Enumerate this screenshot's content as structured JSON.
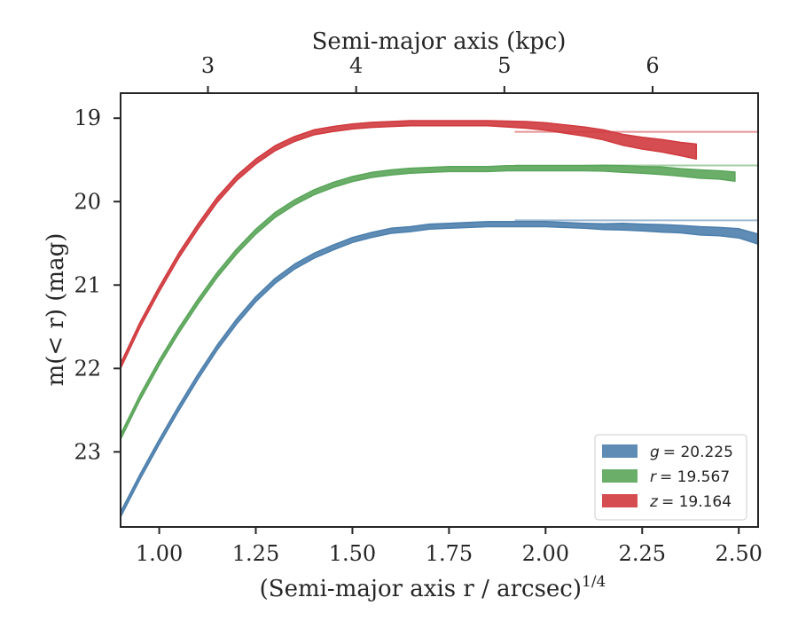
{
  "chart_data": {
    "type": "area",
    "xlabel": "(Semi-major axis r / arcsec)",
    "xlabel_exponent": "1/4",
    "ylabel": "m(< r) (mag)",
    "top_xlabel": "Semi-major axis (kpc)",
    "xlim": [
      0.9,
      2.55
    ],
    "ylim": [
      23.9,
      18.7
    ],
    "y_inverted": true,
    "x_ticks": [
      1.0,
      1.25,
      1.5,
      1.75,
      2.0,
      2.25,
      2.5
    ],
    "x_tick_labels": [
      "1.00",
      "1.25",
      "1.50",
      "1.75",
      "2.00",
      "2.25",
      "2.50"
    ],
    "y_ticks": [
      19,
      20,
      21,
      22,
      23
    ],
    "y_tick_labels": [
      "19",
      "20",
      "21",
      "22",
      "23"
    ],
    "top_ticks": [
      3,
      4,
      5,
      6
    ],
    "top_tick_labels": [
      "3",
      "4",
      "5",
      "6"
    ],
    "grid": false,
    "legend_position": "bottom-right",
    "series": [
      {
        "name": "g = 20.225",
        "legend_var": "g",
        "legend_value": "= 20.225",
        "color": "#4c7fad",
        "asymptote": 20.225,
        "x": [
          0.9,
          0.95,
          1.0,
          1.05,
          1.1,
          1.15,
          1.2,
          1.25,
          1.3,
          1.35,
          1.4,
          1.45,
          1.5,
          1.55,
          1.6,
          1.65,
          1.7,
          1.75,
          1.8,
          1.85,
          1.9,
          1.95,
          2.0,
          2.05,
          2.1,
          2.15,
          2.2,
          2.25,
          2.3,
          2.35,
          2.4,
          2.45,
          2.5,
          2.55
        ],
        "y": [
          23.75,
          23.3,
          22.88,
          22.48,
          22.1,
          21.75,
          21.44,
          21.17,
          20.95,
          20.78,
          20.65,
          20.55,
          20.46,
          20.4,
          20.35,
          20.33,
          20.3,
          20.29,
          20.28,
          20.27,
          20.27,
          20.27,
          20.27,
          20.28,
          20.29,
          20.3,
          20.3,
          20.31,
          20.32,
          20.33,
          20.35,
          20.36,
          20.38,
          20.45
        ],
        "halfwidth": [
          0.03,
          0.03,
          0.03,
          0.03,
          0.03,
          0.03,
          0.03,
          0.03,
          0.03,
          0.03,
          0.03,
          0.03,
          0.03,
          0.03,
          0.03,
          0.03,
          0.03,
          0.03,
          0.03,
          0.03,
          0.03,
          0.03,
          0.03,
          0.03,
          0.03,
          0.035,
          0.04,
          0.04,
          0.045,
          0.045,
          0.05,
          0.05,
          0.055,
          0.06
        ]
      },
      {
        "name": "r = 19.567",
        "legend_var": "r",
        "legend_value": "= 19.567",
        "color": "#5aa55a",
        "asymptote": 19.567,
        "x": [
          0.9,
          0.95,
          1.0,
          1.05,
          1.1,
          1.15,
          1.2,
          1.25,
          1.3,
          1.35,
          1.4,
          1.45,
          1.5,
          1.55,
          1.6,
          1.65,
          1.7,
          1.75,
          1.8,
          1.85,
          1.9,
          1.95,
          2.0,
          2.05,
          2.1,
          2.15,
          2.2,
          2.25,
          2.3,
          2.35,
          2.4,
          2.45,
          2.49
        ],
        "y": [
          22.82,
          22.35,
          21.93,
          21.55,
          21.2,
          20.88,
          20.6,
          20.36,
          20.16,
          20.01,
          19.89,
          19.8,
          19.73,
          19.68,
          19.65,
          19.63,
          19.62,
          19.61,
          19.61,
          19.61,
          19.6,
          19.6,
          19.6,
          19.6,
          19.6,
          19.6,
          19.61,
          19.62,
          19.63,
          19.65,
          19.67,
          19.68,
          19.7
        ],
        "halfwidth": [
          0.03,
          0.03,
          0.03,
          0.03,
          0.03,
          0.03,
          0.03,
          0.03,
          0.03,
          0.03,
          0.03,
          0.03,
          0.03,
          0.03,
          0.03,
          0.03,
          0.03,
          0.03,
          0.03,
          0.03,
          0.03,
          0.03,
          0.03,
          0.03,
          0.03,
          0.035,
          0.04,
          0.04,
          0.045,
          0.045,
          0.05,
          0.05,
          0.055
        ]
      },
      {
        "name": "z = 19.164",
        "legend_var": "z",
        "legend_value": "= 19.164",
        "color": "#d03a3e",
        "asymptote": 19.164,
        "x": [
          0.9,
          0.95,
          1.0,
          1.05,
          1.1,
          1.15,
          1.2,
          1.25,
          1.3,
          1.35,
          1.4,
          1.45,
          1.5,
          1.55,
          1.6,
          1.65,
          1.7,
          1.75,
          1.8,
          1.85,
          1.9,
          1.95,
          2.0,
          2.05,
          2.1,
          2.15,
          2.2,
          2.25,
          2.3,
          2.35,
          2.39
        ],
        "y": [
          21.97,
          21.48,
          21.05,
          20.65,
          20.3,
          19.98,
          19.72,
          19.52,
          19.36,
          19.25,
          19.17,
          19.13,
          19.1,
          19.08,
          19.07,
          19.06,
          19.06,
          19.06,
          19.06,
          19.06,
          19.07,
          19.08,
          19.1,
          19.13,
          19.16,
          19.2,
          19.26,
          19.3,
          19.33,
          19.37,
          19.4
        ],
        "halfwidth": [
          0.03,
          0.03,
          0.03,
          0.03,
          0.03,
          0.03,
          0.03,
          0.03,
          0.03,
          0.03,
          0.03,
          0.03,
          0.03,
          0.03,
          0.03,
          0.03,
          0.03,
          0.03,
          0.03,
          0.03,
          0.035,
          0.04,
          0.045,
          0.05,
          0.055,
          0.06,
          0.065,
          0.07,
          0.075,
          0.08,
          0.09
        ]
      }
    ]
  }
}
